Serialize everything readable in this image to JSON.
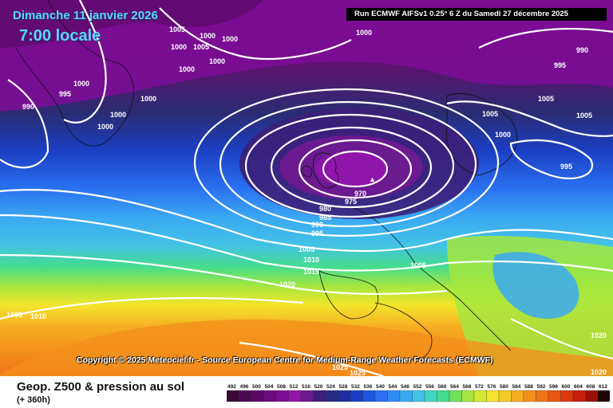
{
  "header": {
    "date": "Dimanche 11 janvier 2026",
    "time": "7:00 locale",
    "run_info": "Run ECMWF AIFSv1 0.25° 6 Z du Samedi 27 décembre 2025"
  },
  "copyright": "Copyright © 2025 Meteociel.fr - Source European Centre for Medium-Range Weather Forecasts (ECMWF)",
  "footer": {
    "title": "Geop. Z500 & pression au sol",
    "subtitle": "(+ 360h)"
  },
  "legend": {
    "labels": [
      "492",
      "496",
      "500",
      "504",
      "508",
      "512",
      "516",
      "520",
      "524",
      "528",
      "532",
      "536",
      "540",
      "544",
      "548",
      "552",
      "556",
      "560",
      "564",
      "568",
      "572",
      "576",
      "580",
      "584",
      "588",
      "592",
      "596",
      "600",
      "604",
      "608",
      "612"
    ],
    "colors": [
      "#3a0a3a",
      "#4a0a4f",
      "#5a0a66",
      "#6c0a7e",
      "#7e0d96",
      "#8f14aa",
      "#6b1a8f",
      "#3c1f77",
      "#282a82",
      "#1e2ea0",
      "#1b3fc2",
      "#1f56de",
      "#2a70f0",
      "#2f8cf5",
      "#3ba9f2",
      "#42c2e6",
      "#3fd7c0",
      "#45dd8c",
      "#6fe15b",
      "#a4e63f",
      "#d4ea30",
      "#f2e62c",
      "#f6cb27",
      "#f6ad22",
      "#f3901c",
      "#ef7317",
      "#e85612",
      "#dd380e",
      "#c8200b",
      "#9a1207",
      "#220505"
    ]
  },
  "isobars": [
    {
      "value": "1005",
      "pos": "top-left"
    },
    {
      "value": "1000",
      "pos": "top-left"
    },
    {
      "value": "1000",
      "pos": "top-left"
    },
    {
      "value": "1005",
      "pos": "top-left"
    },
    {
      "value": "1000",
      "pos": "top-left"
    },
    {
      "value": "1000",
      "pos": "top-left"
    },
    {
      "value": "1000",
      "pos": "top-left"
    },
    {
      "value": "1000",
      "pos": "left"
    },
    {
      "value": "995",
      "pos": "left"
    },
    {
      "value": "990",
      "pos": "left"
    },
    {
      "value": "1000",
      "pos": "left"
    },
    {
      "value": "1000",
      "pos": "left"
    },
    {
      "value": "1000",
      "pos": "left"
    },
    {
      "value": "1000",
      "pos": "top-right"
    },
    {
      "value": "990",
      "pos": "top-right"
    },
    {
      "value": "995",
      "pos": "top-right"
    },
    {
      "value": "1005",
      "pos": "right"
    },
    {
      "value": "1005",
      "pos": "right"
    },
    {
      "value": "1005",
      "pos": "right"
    },
    {
      "value": "1000",
      "pos": "right"
    },
    {
      "value": "995",
      "pos": "right"
    },
    {
      "value": "970",
      "pos": "centre"
    },
    {
      "value": "975",
      "pos": "centre"
    },
    {
      "value": "980",
      "pos": "centre"
    },
    {
      "value": "985",
      "pos": "centre"
    },
    {
      "value": "990",
      "pos": "centre"
    },
    {
      "value": "995",
      "pos": "centre"
    },
    {
      "value": "1005",
      "pos": "centre"
    },
    {
      "value": "1010",
      "pos": "centre"
    },
    {
      "value": "1015",
      "pos": "centre"
    },
    {
      "value": "1020",
      "pos": "centre"
    },
    {
      "value": "1005",
      "pos": "centre-right"
    },
    {
      "value": "1005",
      "pos": "bottom-left"
    },
    {
      "value": "1010",
      "pos": "bottom-left"
    },
    {
      "value": "1025",
      "pos": "bottom"
    },
    {
      "value": "1025",
      "pos": "bottom"
    },
    {
      "value": "1020",
      "pos": "bottom-right"
    },
    {
      "value": "1020",
      "pos": "bottom-right"
    }
  ]
}
